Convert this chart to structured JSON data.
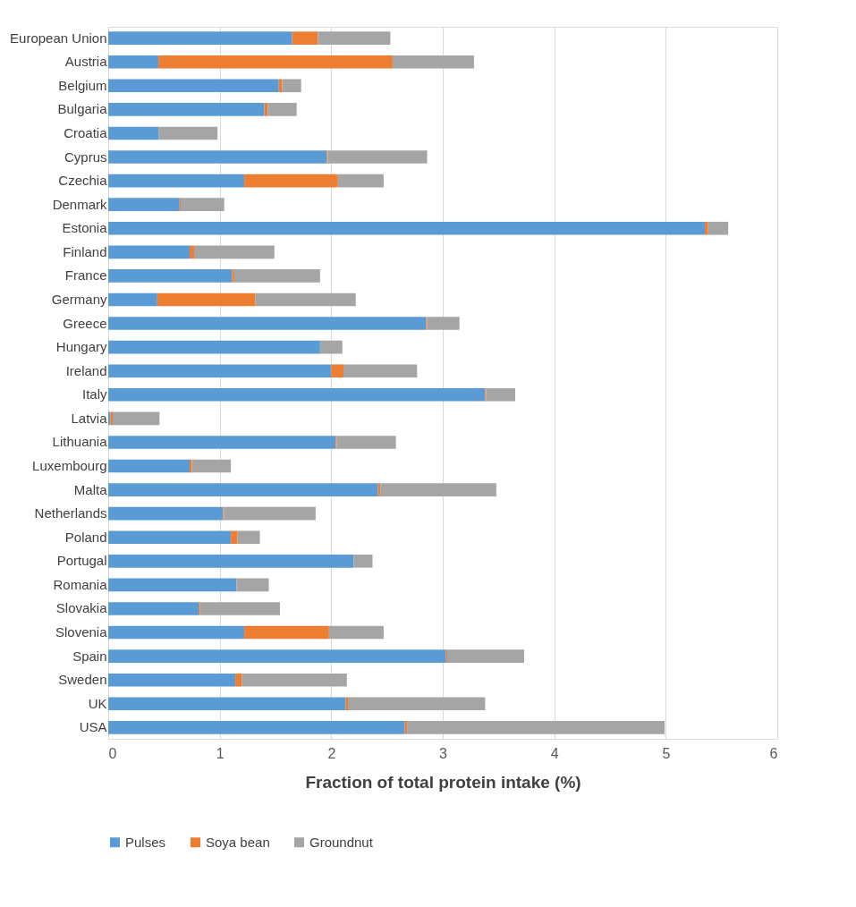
{
  "chart_data": {
    "type": "bar",
    "orientation": "horizontal",
    "stacked": true,
    "categories": [
      "European Union",
      "Austria",
      "Belgium",
      "Bulgaria",
      "Croatia",
      "Cyprus",
      "Czechia",
      "Denmark",
      "Estonia",
      "Finland",
      "France",
      "Germany",
      "Greece",
      "Hungary",
      "Ireland",
      "Italy",
      "Latvia",
      "Lithuania",
      "Luxembourg",
      "Malta",
      "Netherlands",
      "Poland",
      "Portugal",
      "Romania",
      "Slovakia",
      "Slovenia",
      "Spain",
      "Sweden",
      "UK",
      "USA"
    ],
    "series": [
      {
        "name": "Pulses",
        "color": "#5b9bd5",
        "values": [
          1.65,
          0.45,
          1.53,
          1.4,
          0.45,
          1.96,
          1.22,
          0.64,
          5.35,
          0.73,
          1.11,
          0.44,
          2.85,
          1.9,
          2.0,
          3.38,
          0.02,
          2.04,
          0.73,
          2.42,
          1.03,
          1.1,
          2.2,
          1.15,
          0.81,
          1.22,
          3.03,
          1.14,
          2.13,
          2.66
        ]
      },
      {
        "name": "Soya bean",
        "color": "#ed7d31",
        "values": [
          0.23,
          2.1,
          0.03,
          0.03,
          0,
          0.01,
          0.84,
          0.01,
          0.03,
          0.04,
          0.02,
          0.88,
          0.01,
          0,
          0.11,
          0.01,
          0.02,
          0.01,
          0.02,
          0.02,
          0.01,
          0.06,
          0,
          0,
          0.01,
          0.76,
          0.01,
          0.06,
          0.02,
          0.02
        ]
      },
      {
        "name": "Groundnut",
        "color": "#a5a5a5",
        "values": [
          0.65,
          0.73,
          0.17,
          0.26,
          0.53,
          0.89,
          0.41,
          0.39,
          0.18,
          0.72,
          0.77,
          0.9,
          0.29,
          0.2,
          0.66,
          0.26,
          0.42,
          0.53,
          0.35,
          1.04,
          0.82,
          0.2,
          0.17,
          0.29,
          0.72,
          0.49,
          0.69,
          0.94,
          1.23,
          2.31
        ]
      }
    ],
    "xlabel": "Fraction of total protein intake (%)",
    "xlim": [
      0,
      6
    ],
    "xticks": [
      0,
      1,
      2,
      3,
      4,
      5,
      6
    ],
    "grid": "x",
    "legend": "bottom"
  }
}
